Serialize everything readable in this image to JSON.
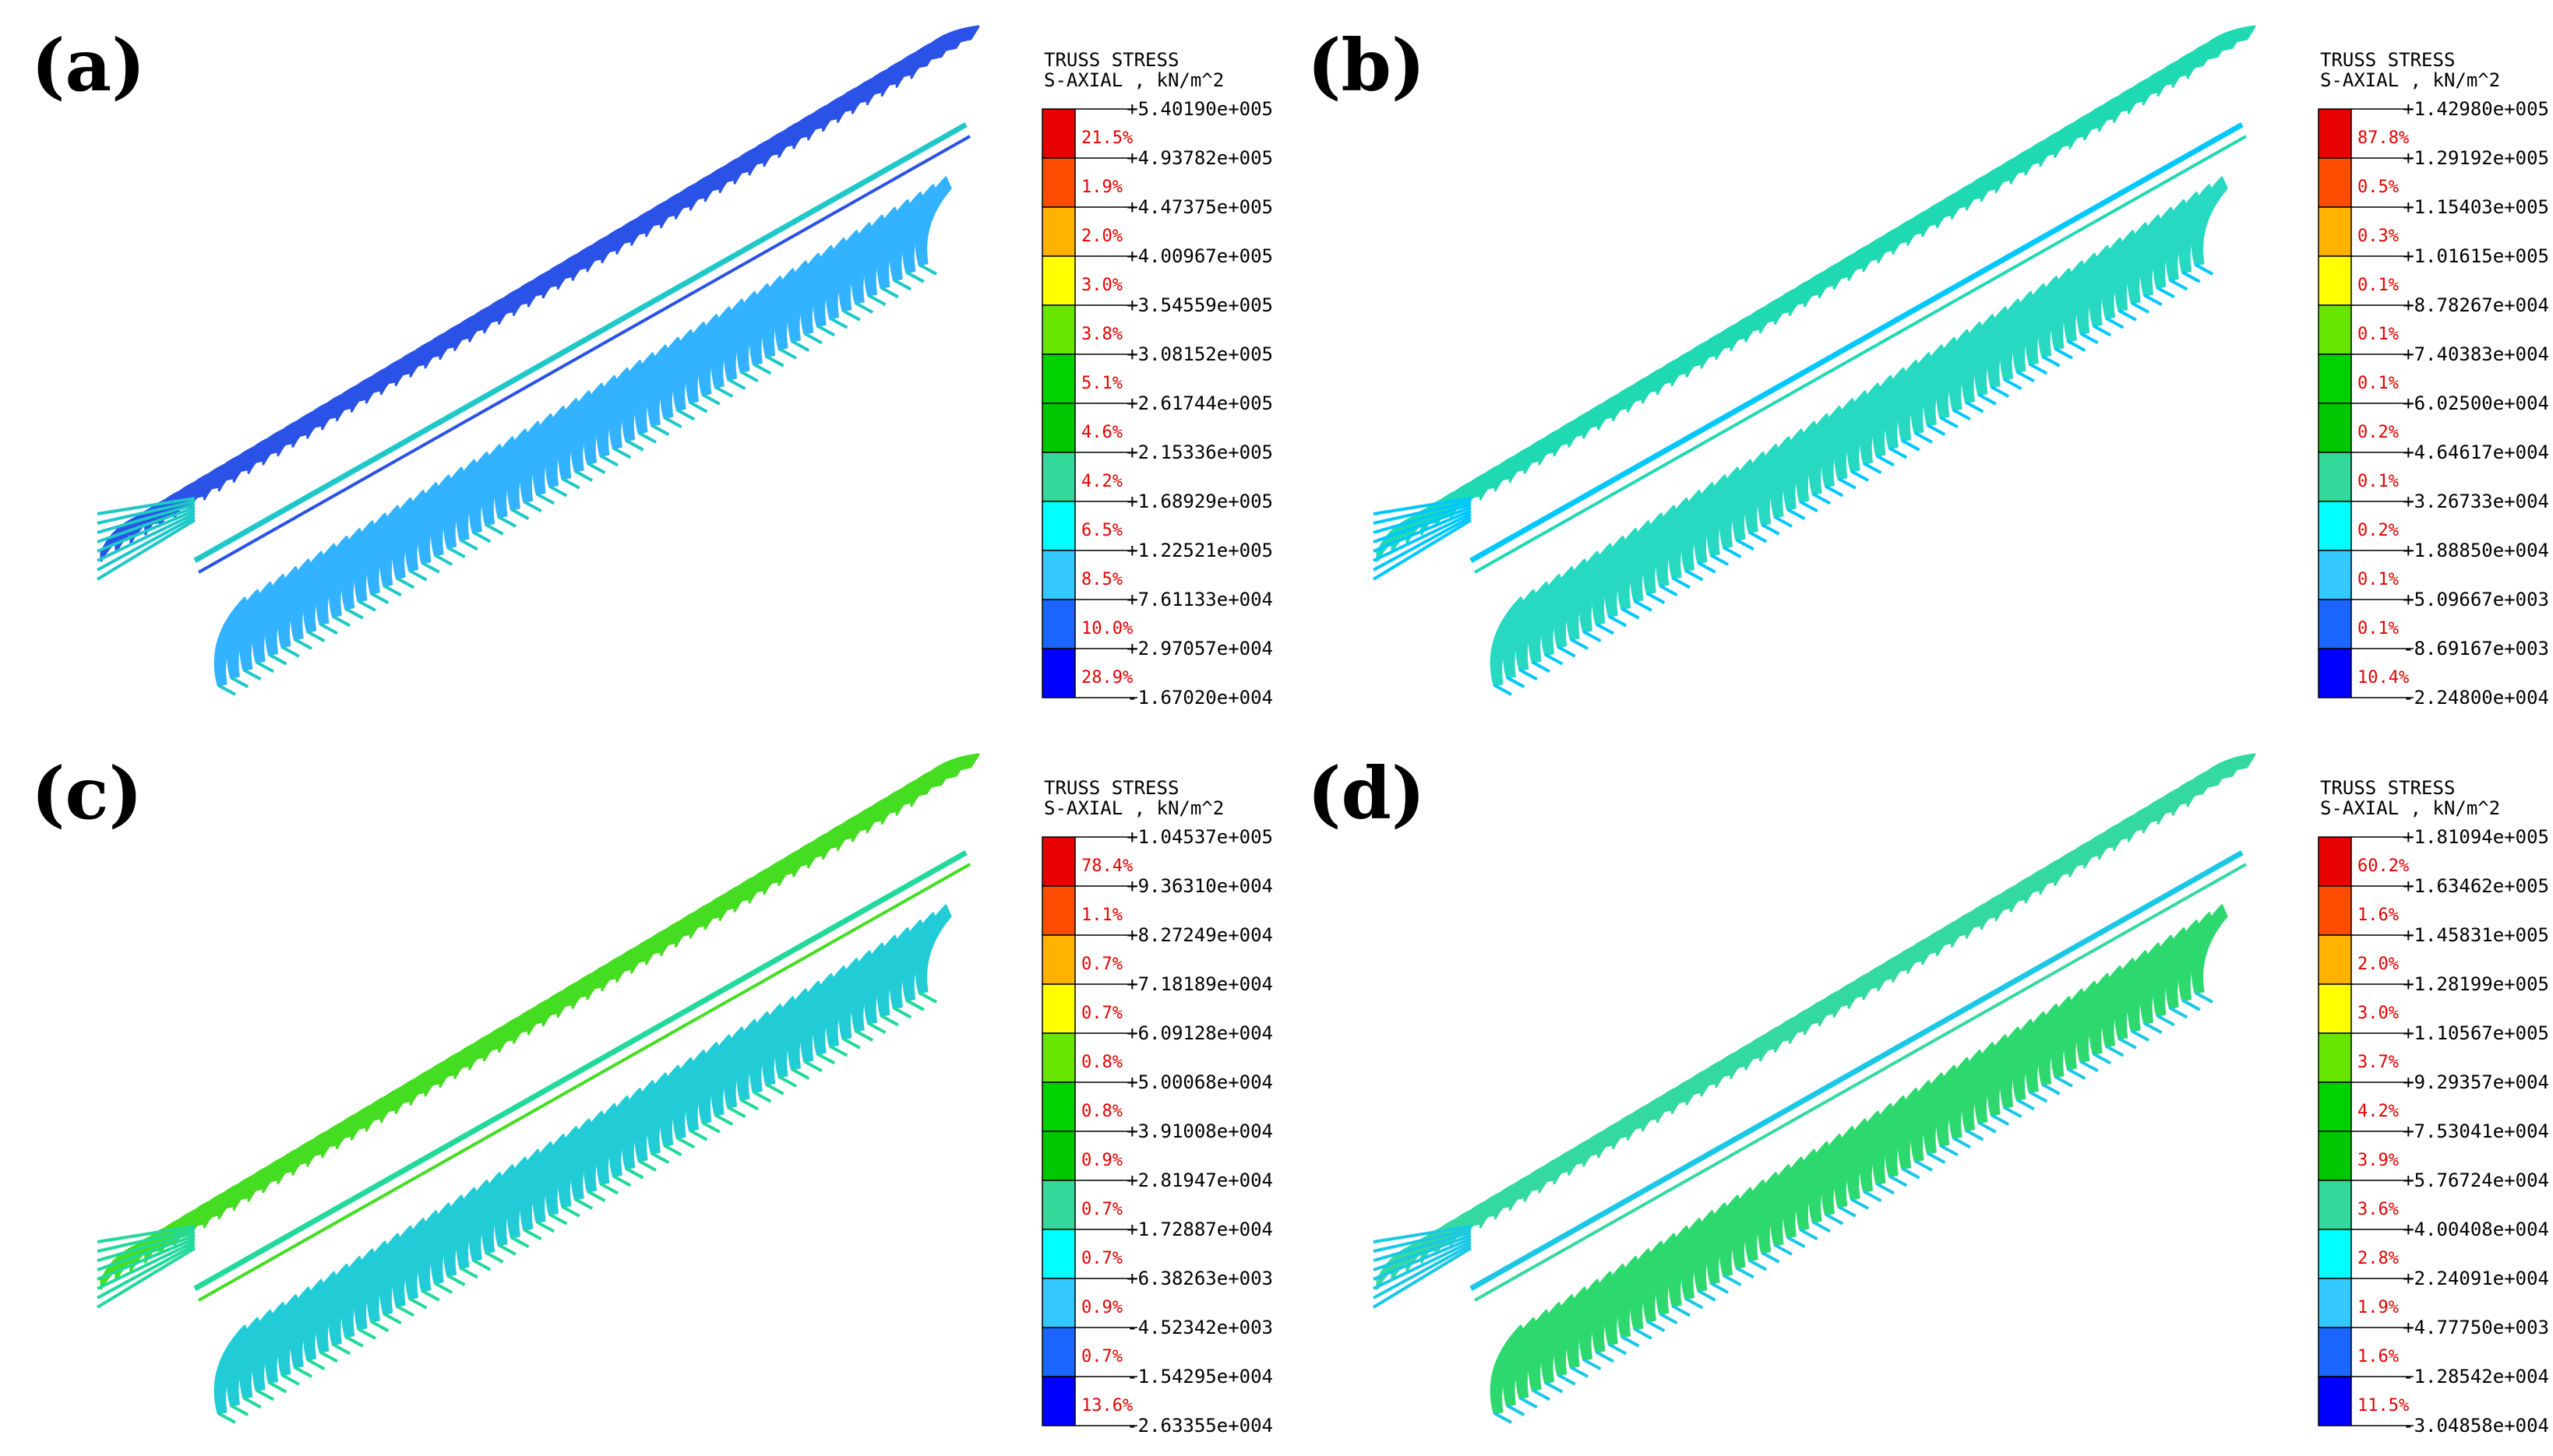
{
  "legend_header": [
    "TRUSS STRESS",
    "S-AXIAL , kN/m^2"
  ],
  "band_colors": [
    "#e60000",
    "#ff4d00",
    "#ffb300",
    "#ffff00",
    "#66e600",
    "#00d200",
    "#00c800",
    "#33d99a",
    "#00ffff",
    "#33c8ff",
    "#1a66ff",
    "#0000ff"
  ],
  "panels": [
    {
      "label": "(a)",
      "stress_values": [
        "+5.40190e+005",
        "+4.93782e+005",
        "+4.47375e+005",
        "+4.00967e+005",
        "+3.54559e+005",
        "+3.08152e+005",
        "+2.61744e+005",
        "+2.15336e+005",
        "+1.68929e+005",
        "+1.22521e+005",
        "+7.61133e+004",
        "+2.97057e+004",
        "-1.67020e+004"
      ],
      "percentages": [
        "21.5%",
        "1.9%",
        "2.0%",
        "3.0%",
        "3.8%",
        "5.1%",
        "4.6%",
        "4.2%",
        "6.5%",
        "8.5%",
        "10.0%",
        "28.9%"
      ],
      "dominant_colors": {
        "upper": "#2a52e6",
        "lower": "#33b3ff",
        "cap": "#1ec8c8"
      }
    },
    {
      "label": "(b)",
      "stress_values": [
        "+1.42980e+005",
        "+1.29192e+005",
        "+1.15403e+005",
        "+1.01615e+005",
        "+8.78267e+004",
        "+7.40383e+004",
        "+6.02500e+004",
        "+4.64617e+004",
        "+3.26733e+004",
        "+1.88850e+004",
        "+5.09667e+003",
        "-8.69167e+003",
        "-2.24800e+004"
      ],
      "percentages": [
        "87.8%",
        "0.5%",
        "0.3%",
        "0.1%",
        "0.1%",
        "0.1%",
        "0.2%",
        "0.1%",
        "0.2%",
        "0.1%",
        "0.1%",
        "10.4%"
      ],
      "dominant_colors": {
        "upper": "#1fd9b3",
        "lower": "#26d9c0",
        "cap": "#00c8ff"
      }
    },
    {
      "label": "(c)",
      "stress_values": [
        "+1.04537e+005",
        "+9.36310e+004",
        "+8.27249e+004",
        "+7.18189e+004",
        "+6.09128e+004",
        "+5.00068e+004",
        "+3.91008e+004",
        "+2.81947e+004",
        "+1.72887e+004",
        "+6.38263e+003",
        "-4.52342e+003",
        "-1.54295e+004",
        "-2.63355e+004"
      ],
      "percentages": [
        "78.4%",
        "1.1%",
        "0.7%",
        "0.7%",
        "0.8%",
        "0.8%",
        "0.9%",
        "0.7%",
        "0.7%",
        "0.9%",
        "0.7%",
        "13.6%"
      ],
      "dominant_colors": {
        "upper": "#44dd22",
        "lower": "#22ccd6",
        "cap": "#20d99a"
      }
    },
    {
      "label": "(d)",
      "stress_values": [
        "+1.81094e+005",
        "+1.63462e+005",
        "+1.45831e+005",
        "+1.28199e+005",
        "+1.10567e+005",
        "+9.29357e+004",
        "+7.53041e+004",
        "+5.76724e+004",
        "+4.00408e+004",
        "+2.24091e+004",
        "+4.77750e+003",
        "-1.28542e+004",
        "-3.04858e+004"
      ],
      "percentages": [
        "60.2%",
        "1.6%",
        "2.0%",
        "3.0%",
        "3.7%",
        "4.2%",
        "3.9%",
        "3.6%",
        "2.8%",
        "1.9%",
        "1.6%",
        "11.5%"
      ],
      "dominant_colors": {
        "upper": "#33d9a0",
        "lower": "#2dd96e",
        "cap": "#1ac8e6"
      }
    }
  ]
}
